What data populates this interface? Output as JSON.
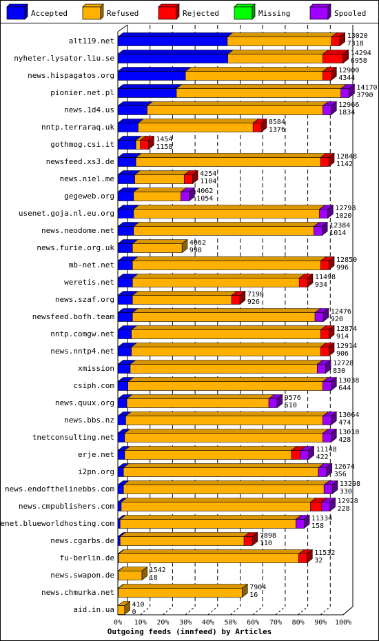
{
  "chart_data": {
    "type": "bar",
    "orientation": "horizontal",
    "stacked": true,
    "three_d": true,
    "xlabel": "Outgoing feeds (innfeed) by Articles",
    "x_ticks": [
      "0%",
      "10%",
      "20%",
      "30%",
      "40%",
      "50%",
      "60%",
      "70%",
      "80%",
      "90%",
      "100%"
    ],
    "xlim": [
      0,
      100
    ],
    "grid": "vertical dashed",
    "legend_position": "top",
    "legend": [
      {
        "key": "accepted",
        "label": "Accepted",
        "color": "#0000ff"
      },
      {
        "key": "refused",
        "label": "Refused",
        "color": "#ffb000"
      },
      {
        "key": "rejected",
        "label": "Rejected",
        "color": "#ff0000"
      },
      {
        "key": "missing",
        "label": "Missing",
        "color": "#00ff00"
      },
      {
        "key": "spooled",
        "label": "Spooled",
        "color": "#a000ff"
      }
    ],
    "rows": [
      {
        "name": "alt119.net",
        "total": "13020",
        "accepted_count": "7318",
        "pct": {
          "accepted": 48.6,
          "refused": 46.2,
          "rejected": 0,
          "missing": 0,
          "spooled": 0
        },
        "cap": "rejected"
      },
      {
        "name": "nyheter.lysator.liu.se",
        "total": "14294",
        "accepted_count": "6958",
        "pct": {
          "accepted": 48.8,
          "refused": 42.2,
          "rejected": 9.0,
          "missing": 0,
          "spooled": 0
        },
        "cap": "rejected"
      },
      {
        "name": "news.hispagatos.org",
        "total": "12900",
        "accepted_count": "4344",
        "pct": {
          "accepted": 30.0,
          "refused": 61.0,
          "rejected": 0,
          "missing": 0,
          "spooled": 0
        },
        "cap": "rejected"
      },
      {
        "name": "pionier.net.pl",
        "total": "14170",
        "accepted_count": "3790",
        "pct": {
          "accepted": 26.0,
          "refused": 73.0,
          "rejected": 0,
          "missing": 0,
          "spooled": 0
        },
        "cap": "spooled"
      },
      {
        "name": "news.1d4.us",
        "total": "12966",
        "accepted_count": "1834",
        "pct": {
          "accepted": 13.0,
          "refused": 78.0,
          "rejected": 0,
          "missing": 0,
          "spooled": 0
        },
        "cap": "spooled"
      },
      {
        "name": "nntp.terraraq.uk",
        "total": "8584",
        "accepted_count": "1376",
        "pct": {
          "accepted": 9.0,
          "refused": 51.0,
          "rejected": 0,
          "missing": 0,
          "spooled": 0
        },
        "cap": "rejected"
      },
      {
        "name": "gothmog.csi.it",
        "total": "1454",
        "accepted_count": "1158",
        "pct": {
          "accepted": 8.0,
          "refused": 2.0,
          "rejected": 0,
          "missing": 0,
          "spooled": 0
        },
        "cap": "rejected"
      },
      {
        "name": "newsfeed.xs3.de",
        "total": "12848",
        "accepted_count": "1142",
        "pct": {
          "accepted": 8.0,
          "refused": 82.0,
          "rejected": 0,
          "missing": 0,
          "spooled": 0
        },
        "cap": "rejected"
      },
      {
        "name": "news.niel.me",
        "total": "4254",
        "accepted_count": "1104",
        "pct": {
          "accepted": 7.5,
          "refused": 22.0,
          "rejected": 0,
          "missing": 0,
          "spooled": 0
        },
        "cap": "rejected"
      },
      {
        "name": "gegeweb.org",
        "total": "4062",
        "accepted_count": "1054",
        "pct": {
          "accepted": 7.0,
          "refused": 21.0,
          "rejected": 0,
          "missing": 0,
          "spooled": 0
        },
        "cap": "spooled"
      },
      {
        "name": "usenet.goja.nl.eu.org",
        "total": "12798",
        "accepted_count": "1020",
        "pct": {
          "accepted": 7.0,
          "refused": 82.5,
          "rejected": 0,
          "missing": 0,
          "spooled": 0
        },
        "cap": "spooled"
      },
      {
        "name": "news.neodome.net",
        "total": "12384",
        "accepted_count": "1014",
        "pct": {
          "accepted": 7.0,
          "refused": 80.0,
          "rejected": 0,
          "missing": 0,
          "spooled": 0
        },
        "cap": "spooled"
      },
      {
        "name": "news.furie.org.uk",
        "total": "4062",
        "accepted_count": "998",
        "pct": {
          "accepted": 6.5,
          "refused": 22.0,
          "rejected": 0,
          "missing": 0,
          "spooled": 0
        },
        "cap": "refused"
      },
      {
        "name": "mb-net.net",
        "total": "12850",
        "accepted_count": "996",
        "pct": {
          "accepted": 6.5,
          "refused": 83.5,
          "rejected": 0,
          "missing": 0,
          "spooled": 0
        },
        "cap": "rejected"
      },
      {
        "name": "weretis.net",
        "total": "11498",
        "accepted_count": "934",
        "pct": {
          "accepted": 6.5,
          "refused": 74.0,
          "rejected": 0,
          "missing": 0,
          "spooled": 0
        },
        "cap": "rejected"
      },
      {
        "name": "news.szaf.org",
        "total": "7198",
        "accepted_count": "926",
        "pct": {
          "accepted": 6.5,
          "refused": 44.0,
          "rejected": 0,
          "missing": 0,
          "spooled": 0
        },
        "cap": "rejected"
      },
      {
        "name": "newsfeed.bofh.team",
        "total": "12476",
        "accepted_count": "920",
        "pct": {
          "accepted": 6.5,
          "refused": 81.0,
          "rejected": 0,
          "missing": 0,
          "spooled": 0
        },
        "cap": "spooled"
      },
      {
        "name": "nntp.comgw.net",
        "total": "12874",
        "accepted_count": "914",
        "pct": {
          "accepted": 6.0,
          "refused": 84.0,
          "rejected": 0,
          "missing": 0,
          "spooled": 0
        },
        "cap": "rejected"
      },
      {
        "name": "news.nntp4.net",
        "total": "12914",
        "accepted_count": "906",
        "pct": {
          "accepted": 6.0,
          "refused": 84.0,
          "rejected": 0,
          "missing": 0,
          "spooled": 0
        },
        "cap": "rejected"
      },
      {
        "name": "xmission",
        "total": "12728",
        "accepted_count": "830",
        "pct": {
          "accepted": 5.5,
          "refused": 83.0,
          "rejected": 0,
          "missing": 0,
          "spooled": 0
        },
        "cap": "spooled"
      },
      {
        "name": "csiph.com",
        "total": "13038",
        "accepted_count": "644",
        "pct": {
          "accepted": 4.5,
          "refused": 86.5,
          "rejected": 0,
          "missing": 0,
          "spooled": 0
        },
        "cap": "spooled"
      },
      {
        "name": "news.quux.org",
        "total": "9576",
        "accepted_count": "510",
        "pct": {
          "accepted": 4.0,
          "refused": 63.0,
          "rejected": 0,
          "missing": 0,
          "spooled": 0
        },
        "cap": "spooled"
      },
      {
        "name": "news.bbs.nz",
        "total": "13064",
        "accepted_count": "474",
        "pct": {
          "accepted": 3.5,
          "refused": 87.5,
          "rejected": 0,
          "missing": 0,
          "spooled": 0
        },
        "cap": "spooled"
      },
      {
        "name": "tnetconsulting.net",
        "total": "13010",
        "accepted_count": "428",
        "pct": {
          "accepted": 3.0,
          "refused": 88.0,
          "rejected": 0,
          "missing": 0,
          "spooled": 0
        },
        "cap": "spooled"
      },
      {
        "name": "erje.net",
        "total": "11148",
        "accepted_count": "422",
        "pct": {
          "accepted": 3.0,
          "refused": 74.0,
          "rejected": 4.0,
          "missing": 0,
          "spooled": 0
        },
        "cap": "spooled"
      },
      {
        "name": "i2pn.org",
        "total": "12674",
        "accepted_count": "356",
        "pct": {
          "accepted": 2.5,
          "refused": 86.5,
          "rejected": 0,
          "missing": 0,
          "spooled": 0
        },
        "cap": "spooled"
      },
      {
        "name": "news.endofthelinebbs.com",
        "total": "13298",
        "accepted_count": "330",
        "pct": {
          "accepted": 2.5,
          "refused": 89.0,
          "rejected": 0,
          "missing": 0,
          "spooled": 0
        },
        "cap": "spooled"
      },
      {
        "name": "news.cmpublishers.com",
        "total": "12928",
        "accepted_count": "228",
        "pct": {
          "accepted": 1.5,
          "refused": 84.0,
          "rejected": 5.0,
          "missing": 0,
          "spooled": 0
        },
        "cap": "spooled"
      },
      {
        "name": "usenet.blueworldhosting.com",
        "total": "11334",
        "accepted_count": "158",
        "pct": {
          "accepted": 1.0,
          "refused": 78.0,
          "rejected": 0,
          "missing": 0,
          "spooled": 0
        },
        "cap": "spooled"
      },
      {
        "name": "news.cgarbs.de",
        "total": "7898",
        "accepted_count": "110",
        "pct": {
          "accepted": 1.0,
          "refused": 55.0,
          "rejected": 0,
          "missing": 0,
          "spooled": 0
        },
        "cap": "rejected"
      },
      {
        "name": "fu-berlin.de",
        "total": "11532",
        "accepted_count": "32",
        "pct": {
          "accepted": 0.3,
          "refused": 80.0,
          "rejected": 0,
          "missing": 0,
          "spooled": 0
        },
        "cap": "rejected"
      },
      {
        "name": "news.swapon.de",
        "total": "1542",
        "accepted_count": "18",
        "pct": {
          "accepted": 0.2,
          "refused": 10.5,
          "rejected": 0,
          "missing": 0,
          "spooled": 0
        },
        "cap": "refused"
      },
      {
        "name": "news.chmurka.net",
        "total": "7904",
        "accepted_count": "16",
        "pct": {
          "accepted": 0.2,
          "refused": 55.0,
          "rejected": 0,
          "missing": 0,
          "spooled": 0
        },
        "cap": "refused"
      },
      {
        "name": "aid.in.ua",
        "total": "410",
        "accepted_count": "0",
        "pct": {
          "accepted": 0,
          "refused": 3.0,
          "rejected": 0,
          "missing": 0,
          "spooled": 0
        },
        "cap": "refused"
      }
    ]
  }
}
